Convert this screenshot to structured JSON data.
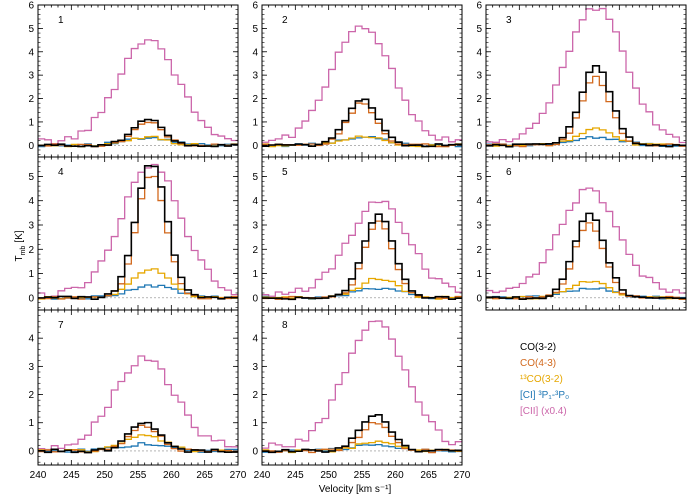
{
  "chart_data": {
    "type": "line",
    "step": true,
    "xlabel": "Velocity [km s⁻¹]",
    "ylabel": "T",
    "ylabel_sub": "mb",
    "ylabel_unit": "[K]",
    "xlim": [
      240,
      270
    ],
    "x_ticks": [
      "240",
      "245",
      "250",
      "255",
      "260",
      "265",
      "270"
    ],
    "legend_position": "bottom-right",
    "series_styles": [
      {
        "key": "co32",
        "label": "CO(3-2)",
        "color": "#000000"
      },
      {
        "key": "co43",
        "label": "CO(4-3)",
        "color": "#d2691e"
      },
      {
        "key": "13co32",
        "label": "¹³CO(3-2)",
        "color": "#e6a700"
      },
      {
        "key": "ci",
        "label": "[CI] ³P₁-³P₀",
        "color": "#1f77b4"
      },
      {
        "key": "cii",
        "label": "[CII] (x0.4)",
        "color": "#cc66aa"
      }
    ],
    "panels": [
      {
        "label": "1",
        "ylim": [
          -0.5,
          6
        ],
        "y_ticks": [
          "0",
          "1",
          "2",
          "3",
          "4",
          "5",
          "6"
        ],
        "center": 256.5,
        "peaks": {
          "co32": 1.1,
          "co43": 1.0,
          "13co32": 0.35,
          "ci": 0.3,
          "cii": 4.4
        }
      },
      {
        "label": "2",
        "ylim": [
          -0.5,
          6
        ],
        "y_ticks": [
          "0",
          "1",
          "2",
          "3",
          "4",
          "5",
          "6"
        ],
        "center": 255.0,
        "peaks": {
          "co32": 2.0,
          "co43": 1.8,
          "13co32": 0.4,
          "ci": 0.35,
          "cii": 5.0
        }
      },
      {
        "label": "3",
        "ylim": [
          -0.5,
          6
        ],
        "y_ticks": [
          "0",
          "1",
          "2",
          "3",
          "4",
          "5",
          "6"
        ],
        "center": 256.5,
        "peaks": {
          "co32": 3.4,
          "co43": 2.9,
          "13co32": 0.7,
          "ci": 0.35,
          "cii": 5.7
        }
      },
      {
        "label": "4",
        "ylim": [
          -0.5,
          5.8
        ],
        "y_ticks": [
          "0",
          "1",
          "2",
          "3",
          "4",
          "5"
        ],
        "center": 257.0,
        "peaks": {
          "co32": 5.6,
          "co43": 5.1,
          "13co32": 1.2,
          "ci": 0.5,
          "cii": 5.3
        }
      },
      {
        "label": "5",
        "ylim": [
          -0.5,
          5.8
        ],
        "y_ticks": [
          "0",
          "1",
          "2",
          "3",
          "4",
          "5"
        ],
        "center": 257.5,
        "peaks": {
          "co32": 3.4,
          "co43": 3.1,
          "13co32": 0.8,
          "ci": 0.4,
          "cii": 3.8
        }
      },
      {
        "label": "6",
        "ylim": [
          -0.5,
          5.8
        ],
        "y_ticks": [
          "0",
          "1",
          "2",
          "3",
          "4",
          "5"
        ],
        "center": 255.5,
        "peaks": {
          "co32": 3.5,
          "co43": 3.1,
          "13co32": 0.7,
          "ci": 0.4,
          "cii": 4.3
        }
      },
      {
        "label": "7",
        "ylim": [
          -0.5,
          5
        ],
        "y_ticks": [
          "0",
          "1",
          "2",
          "3",
          "4"
        ],
        "center": 256.0,
        "peaks": {
          "co32": 1.0,
          "co43": 0.9,
          "13co32": 0.6,
          "ci": 0.25,
          "cii": 3.1
        }
      },
      {
        "label": "8",
        "ylim": [
          -0.5,
          5
        ],
        "y_ticks": [
          "0",
          "1",
          "2",
          "3",
          "4"
        ],
        "center": 257.0,
        "peaks": {
          "co32": 1.3,
          "co43": 1.0,
          "13co32": 0.3,
          "ci": 0.2,
          "cii": 4.5
        }
      }
    ]
  }
}
